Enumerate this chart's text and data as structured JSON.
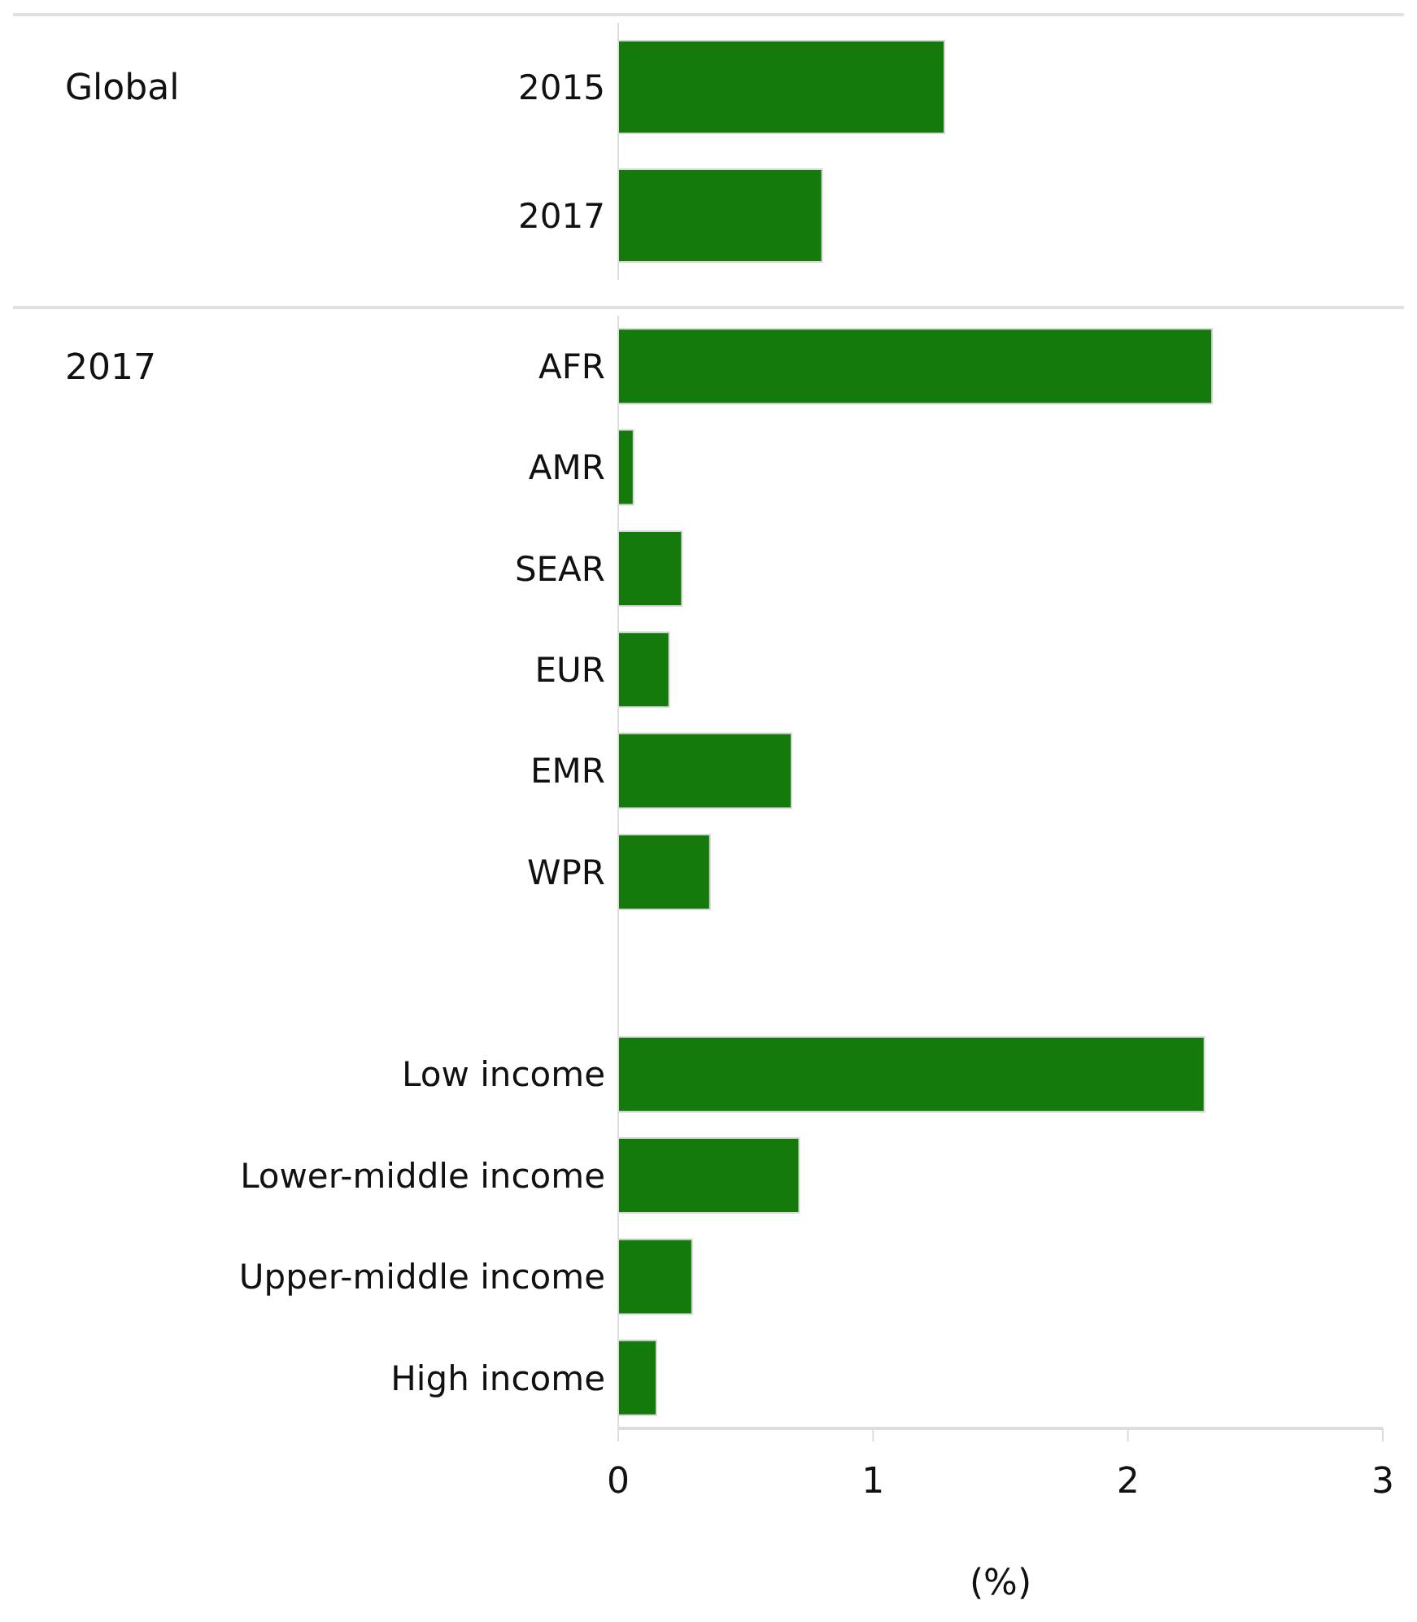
{
  "chart_data": [
    {
      "type": "bar",
      "orientation": "horizontal",
      "annotations": [
        "Global"
      ],
      "categories": [
        "2015",
        "2017"
      ],
      "values": [
        1.28,
        0.8
      ],
      "color": "#157a0c",
      "xlim": [
        0,
        3
      ],
      "xticks": [
        0,
        1,
        2,
        3
      ],
      "tick_labels": "y"
    },
    {
      "type": "bar",
      "orientation": "horizontal",
      "annotations": [
        "2017"
      ],
      "xlabel": "(%)",
      "categories": [
        "AFR",
        "AMR",
        "SEAR",
        "EUR",
        "EMR",
        "WPR",
        null,
        "Low income",
        "Lower-middle income",
        "Upper-middle income",
        "High income"
      ],
      "values": [
        2.33,
        0.06,
        0.25,
        0.2,
        0.68,
        0.36,
        null,
        2.3,
        0.71,
        0.29,
        0.15
      ],
      "color": "#157a0c",
      "xlim": [
        0,
        3
      ],
      "xticks": [
        0,
        1,
        2,
        3
      ]
    }
  ]
}
